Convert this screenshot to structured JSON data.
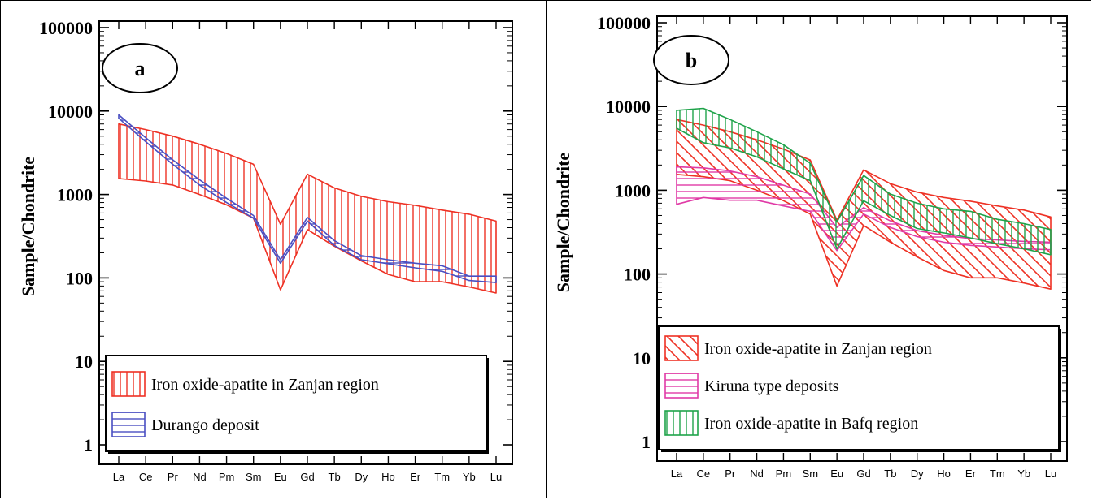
{
  "colors": {
    "zanjan": "#ee3124",
    "durango": "#4a4fc2",
    "kiruna": "#e03aa6",
    "bafq": "#1fa34a"
  },
  "chart_data": [
    {
      "type": "area",
      "panel_label": "a",
      "title": "",
      "xlabel": "",
      "ylabel": "Sample/Chondrite",
      "yscale": "log",
      "ylim": [
        1,
        100000
      ],
      "yticks": [
        "1",
        "10",
        "100",
        "1000",
        "10000",
        "100000"
      ],
      "categories": [
        "La",
        "Ce",
        "Pr",
        "Nd",
        "Pm",
        "Sm",
        "Eu",
        "Gd",
        "Tb",
        "Dy",
        "Ho",
        "Er",
        "Tm",
        "Yb",
        "Lu"
      ],
      "legend_position": "bottom",
      "series": [
        {
          "name": "Iron oxide-apatite in Zanjan region",
          "color": "zanjan",
          "pattern": "vertical",
          "upper": [
            7000,
            6000,
            5000,
            4000,
            3100,
            2300,
            440,
            1750,
            1200,
            950,
            820,
            740,
            650,
            580,
            480
          ],
          "lower": [
            1550,
            1450,
            1300,
            1000,
            750,
            520,
            72,
            380,
            240,
            160,
            110,
            90,
            90,
            78,
            66
          ]
        },
        {
          "name": "Durango deposit",
          "color": "durango",
          "pattern": "horizontal",
          "upper": [
            9000,
            4800,
            2600,
            1500,
            900,
            560,
            165,
            530,
            280,
            185,
            165,
            150,
            140,
            105,
            105
          ],
          "lower": [
            8200,
            4300,
            2300,
            1300,
            800,
            520,
            150,
            480,
            245,
            165,
            148,
            132,
            120,
            93,
            88
          ]
        }
      ]
    },
    {
      "type": "area",
      "panel_label": "b",
      "title": "",
      "xlabel": "",
      "ylabel": "Sample/Chondrite",
      "yscale": "log",
      "ylim": [
        1,
        100000
      ],
      "yticks": [
        "1",
        "10",
        "100",
        "1000",
        "10000",
        "100000"
      ],
      "categories": [
        "La",
        "Ce",
        "Pr",
        "Nd",
        "Pm",
        "Sm",
        "Eu",
        "Gd",
        "Tb",
        "Dy",
        "Ho",
        "Er",
        "Tm",
        "Yb",
        "Lu"
      ],
      "legend_position": "bottom",
      "series": [
        {
          "name": "Iron oxide-apatite in Zanjan region",
          "color": "zanjan",
          "pattern": "diagonal",
          "upper": [
            7000,
            6000,
            5000,
            4000,
            3100,
            2300,
            440,
            1750,
            1200,
            950,
            820,
            740,
            650,
            580,
            480
          ],
          "lower": [
            1550,
            1450,
            1300,
            1000,
            750,
            520,
            72,
            380,
            240,
            160,
            110,
            90,
            90,
            78,
            66
          ]
        },
        {
          "name": "Kiruna type deposits",
          "color": "kiruna",
          "pattern": "horizontal",
          "upper": [
            1900,
            1850,
            1700,
            1450,
            1150,
            900,
            360,
            620,
            430,
            330,
            290,
            265,
            255,
            245,
            240
          ],
          "lower": [
            680,
            820,
            760,
            760,
            650,
            560,
            190,
            520,
            360,
            280,
            240,
            220,
            210,
            200,
            195
          ]
        },
        {
          "name": "Iron oxide-apatite in Bafq region",
          "color": "bafq",
          "pattern": "vertical",
          "upper": [
            9000,
            9500,
            7000,
            5000,
            3500,
            2100,
            420,
            1500,
            900,
            700,
            600,
            560,
            450,
            400,
            340
          ],
          "lower": [
            5500,
            3700,
            3200,
            2500,
            1800,
            1300,
            200,
            750,
            500,
            350,
            310,
            270,
            230,
            200,
            170
          ]
        }
      ]
    }
  ]
}
